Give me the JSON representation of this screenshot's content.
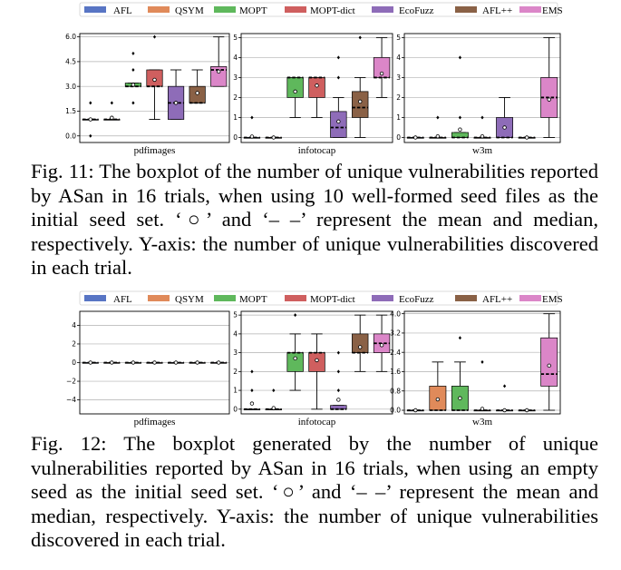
{
  "legend": [
    {
      "name": "AFL",
      "color": "#5875c4"
    },
    {
      "name": "QSYM",
      "color": "#e08a5a"
    },
    {
      "name": "MOPT",
      "color": "#5fb85c"
    },
    {
      "name": "MOPT-dict",
      "color": "#cf5f5f"
    },
    {
      "name": "EcoFuzz",
      "color": "#8e6cb8"
    },
    {
      "name": "AFL++",
      "color": "#8a6146"
    },
    {
      "name": "EMS",
      "color": "#db86c8"
    }
  ],
  "captions": {
    "fig11": "Fig. 11: The boxplot of the number of unique vulnerabilities reported by ASan in 16 trials, when using 10 well-formed seed files as the initial seed set. ‘○’ and ‘– –’ represent the mean and median, respectively. Y-axis: the number of unique vulnerabilities discovered in each trial.",
    "fig12": "Fig. 12: The boxplot generated by the number of unique vulnerabilities reported by ASan in 16 trials, when using an empty seed as the initial seed set. ‘○’ and ‘– –’ represent the mean and median, respectively. Y-axis: the number of unique vulnerabilities discovered in each trial."
  },
  "chart_data": [
    {
      "type": "box",
      "figure": "fig11",
      "panels": [
        {
          "xlabel": "pdfimages",
          "ylim": [
            -0.4,
            6.2
          ],
          "yticks": [
            0.0,
            1.5,
            3.0,
            4.5,
            6.0
          ],
          "ytick_labels": [
            "0.0",
            "1.5",
            "3.0",
            "4.5",
            "6.0"
          ],
          "boxes": [
            {
              "fuzzer": "AFL",
              "q1": 1,
              "median": 1,
              "q3": 1,
              "whisker_low": 1,
              "whisker_high": 1,
              "mean": 1.0,
              "outliers": [
                0,
                2
              ]
            },
            {
              "fuzzer": "QSYM",
              "q1": 1,
              "median": 1,
              "q3": 1,
              "whisker_low": 1,
              "whisker_high": 1,
              "mean": 1.1,
              "outliers": [
                2
              ]
            },
            {
              "fuzzer": "MOPT",
              "q1": 3,
              "median": 3,
              "q3": 3.2,
              "whisker_low": 3,
              "whisker_high": 3.2,
              "mean": 3.1,
              "outliers": [
                2,
                4,
                5
              ]
            },
            {
              "fuzzer": "MOPT-dict",
              "q1": 3,
              "median": 3,
              "q3": 4,
              "whisker_low": 1,
              "whisker_high": 4,
              "mean": 3.4,
              "outliers": [
                6
              ]
            },
            {
              "fuzzer": "EcoFuzz",
              "q1": 1,
              "median": 2,
              "q3": 3,
              "whisker_low": 1,
              "whisker_high": 4,
              "mean": 2.0,
              "outliers": []
            },
            {
              "fuzzer": "AFL++",
              "q1": 2,
              "median": 2,
              "q3": 3,
              "whisker_low": 2,
              "whisker_high": 4,
              "mean": 2.6,
              "outliers": []
            },
            {
              "fuzzer": "EMS",
              "q1": 3,
              "median": 4,
              "q3": 4.2,
              "whisker_low": 3,
              "whisker_high": 6,
              "mean": 3.9,
              "outliers": []
            }
          ]
        },
        {
          "xlabel": "infotocap",
          "ylim": [
            -0.25,
            5.2
          ],
          "yticks": [
            0,
            1,
            2,
            3,
            4,
            5
          ],
          "ytick_labels": [
            "0",
            "1",
            "2",
            "3",
            "4",
            "5"
          ],
          "boxes": [
            {
              "fuzzer": "AFL",
              "q1": 0,
              "median": 0,
              "q3": 0,
              "whisker_low": 0,
              "whisker_high": 0,
              "mean": 0.05,
              "outliers": [
                1
              ]
            },
            {
              "fuzzer": "QSYM",
              "q1": 0,
              "median": 0,
              "q3": 0,
              "whisker_low": 0,
              "whisker_high": 0,
              "mean": 0.0,
              "outliers": []
            },
            {
              "fuzzer": "MOPT",
              "q1": 2,
              "median": 3,
              "q3": 3,
              "whisker_low": 1,
              "whisker_high": 3,
              "mean": 2.3,
              "outliers": []
            },
            {
              "fuzzer": "MOPT-dict",
              "q1": 2,
              "median": 3,
              "q3": 3,
              "whisker_low": 1,
              "whisker_high": 3,
              "mean": 2.6,
              "outliers": []
            },
            {
              "fuzzer": "EcoFuzz",
              "q1": 0,
              "median": 0.5,
              "q3": 1.3,
              "whisker_low": 0,
              "whisker_high": 2,
              "mean": 0.8,
              "outliers": [
                3,
                4
              ]
            },
            {
              "fuzzer": "AFL++",
              "q1": 1,
              "median": 1.5,
              "q3": 2.3,
              "whisker_low": 0,
              "whisker_high": 3,
              "mean": 1.8,
              "outliers": [
                5
              ]
            },
            {
              "fuzzer": "EMS",
              "q1": 3,
              "median": 3,
              "q3": 4,
              "whisker_low": 2,
              "whisker_high": 5,
              "mean": 3.2,
              "outliers": []
            }
          ]
        },
        {
          "xlabel": "w3m",
          "ylim": [
            -0.25,
            5.2
          ],
          "yticks": [
            0,
            1,
            2,
            3,
            4,
            5
          ],
          "ytick_labels": [
            "0",
            "1",
            "2",
            "3",
            "4",
            "5"
          ],
          "boxes": [
            {
              "fuzzer": "AFL",
              "q1": 0,
              "median": 0,
              "q3": 0,
              "whisker_low": 0,
              "whisker_high": 0,
              "mean": 0.0,
              "outliers": []
            },
            {
              "fuzzer": "QSYM",
              "q1": 0,
              "median": 0,
              "q3": 0,
              "whisker_low": 0,
              "whisker_high": 0,
              "mean": 0.06,
              "outliers": [
                1
              ]
            },
            {
              "fuzzer": "MOPT",
              "q1": 0,
              "median": 0,
              "q3": 0.25,
              "whisker_low": 0,
              "whisker_high": 0.25,
              "mean": 0.4,
              "outliers": [
                1,
                4
              ]
            },
            {
              "fuzzer": "MOPT-dict",
              "q1": 0,
              "median": 0,
              "q3": 0,
              "whisker_low": 0,
              "whisker_high": 0,
              "mean": 0.06,
              "outliers": [
                1
              ]
            },
            {
              "fuzzer": "EcoFuzz",
              "q1": 0,
              "median": 0,
              "q3": 1,
              "whisker_low": 0,
              "whisker_high": 2,
              "mean": 0.5,
              "outliers": []
            },
            {
              "fuzzer": "AFL++",
              "q1": 0,
              "median": 0,
              "q3": 0,
              "whisker_low": 0,
              "whisker_high": 0,
              "mean": 0.0,
              "outliers": []
            },
            {
              "fuzzer": "EMS",
              "q1": 1,
              "median": 2,
              "q3": 3,
              "whisker_low": 0,
              "whisker_high": 5,
              "mean": 1.9,
              "outliers": []
            }
          ]
        }
      ]
    },
    {
      "type": "box",
      "figure": "fig12",
      "panels": [
        {
          "xlabel": "pdfimages",
          "ylim": [
            -5.5,
            5.5
          ],
          "yticks": [
            -4,
            -2,
            0,
            2,
            4
          ],
          "ytick_labels": [
            "−4",
            "−2",
            "0",
            "2",
            "4"
          ],
          "boxes": [
            {
              "fuzzer": "AFL",
              "q1": 0,
              "median": 0,
              "q3": 0,
              "whisker_low": 0,
              "whisker_high": 0,
              "mean": 0,
              "outliers": []
            },
            {
              "fuzzer": "QSYM",
              "q1": 0,
              "median": 0,
              "q3": 0,
              "whisker_low": 0,
              "whisker_high": 0,
              "mean": 0,
              "outliers": []
            },
            {
              "fuzzer": "MOPT",
              "q1": 0,
              "median": 0,
              "q3": 0,
              "whisker_low": 0,
              "whisker_high": 0,
              "mean": 0,
              "outliers": []
            },
            {
              "fuzzer": "MOPT-dict",
              "q1": 0,
              "median": 0,
              "q3": 0,
              "whisker_low": 0,
              "whisker_high": 0,
              "mean": 0,
              "outliers": []
            },
            {
              "fuzzer": "EcoFuzz",
              "q1": 0,
              "median": 0,
              "q3": 0,
              "whisker_low": 0,
              "whisker_high": 0,
              "mean": 0,
              "outliers": []
            },
            {
              "fuzzer": "AFL++",
              "q1": 0,
              "median": 0,
              "q3": 0,
              "whisker_low": 0,
              "whisker_high": 0,
              "mean": 0,
              "outliers": []
            },
            {
              "fuzzer": "EMS",
              "q1": 0,
              "median": 0,
              "q3": 0,
              "whisker_low": 0,
              "whisker_high": 0,
              "mean": 0,
              "outliers": []
            }
          ]
        },
        {
          "xlabel": "infotocap",
          "ylim": [
            -0.25,
            5.2
          ],
          "yticks": [
            0,
            1,
            2,
            3,
            4,
            5
          ],
          "ytick_labels": [
            "0",
            "1",
            "2",
            "3",
            "4",
            "5"
          ],
          "boxes": [
            {
              "fuzzer": "AFL",
              "q1": 0,
              "median": 0,
              "q3": 0,
              "whisker_low": 0,
              "whisker_high": 0,
              "mean": 0.3,
              "outliers": [
                1,
                2
              ]
            },
            {
              "fuzzer": "QSYM",
              "q1": 0,
              "median": 0,
              "q3": 0,
              "whisker_low": 0,
              "whisker_high": 0,
              "mean": 0.06,
              "outliers": [
                1
              ]
            },
            {
              "fuzzer": "MOPT",
              "q1": 2,
              "median": 3,
              "q3": 3,
              "whisker_low": 1,
              "whisker_high": 4,
              "mean": 2.7,
              "outliers": [
                5
              ]
            },
            {
              "fuzzer": "MOPT-dict",
              "q1": 2,
              "median": 3,
              "q3": 3,
              "whisker_low": 0,
              "whisker_high": 4,
              "mean": 2.6,
              "outliers": []
            },
            {
              "fuzzer": "EcoFuzz",
              "q1": 0,
              "median": 0,
              "q3": 0.2,
              "whisker_low": 0,
              "whisker_high": 0.2,
              "mean": 0.5,
              "outliers": [
                1,
                2,
                3
              ]
            },
            {
              "fuzzer": "AFL++",
              "q1": 3,
              "median": 3,
              "q3": 4,
              "whisker_low": 2,
              "whisker_high": 5,
              "mean": 3.3,
              "outliers": []
            },
            {
              "fuzzer": "EMS",
              "q1": 3,
              "median": 3.5,
              "q3": 4,
              "whisker_low": 2,
              "whisker_high": 5,
              "mean": 3.4,
              "outliers": []
            }
          ]
        },
        {
          "xlabel": "w3m",
          "ylim": [
            -0.15,
            4.1
          ],
          "yticks": [
            0.0,
            0.8,
            1.6,
            2.4,
            3.2,
            4.0
          ],
          "ytick_labels": [
            "0.0",
            "0.8",
            "1.6",
            "2.4",
            "3.2",
            "4.0"
          ],
          "boxes": [
            {
              "fuzzer": "AFL",
              "q1": 0,
              "median": 0,
              "q3": 0,
              "whisker_low": 0,
              "whisker_high": 0,
              "mean": 0.0,
              "outliers": []
            },
            {
              "fuzzer": "QSYM",
              "q1": 0,
              "median": 0,
              "q3": 1,
              "whisker_low": 0,
              "whisker_high": 2,
              "mean": 0.45,
              "outliers": []
            },
            {
              "fuzzer": "MOPT",
              "q1": 0,
              "median": 0,
              "q3": 1,
              "whisker_low": 0,
              "whisker_high": 2,
              "mean": 0.5,
              "outliers": [
                3
              ]
            },
            {
              "fuzzer": "MOPT-dict",
              "q1": 0,
              "median": 0,
              "q3": 0,
              "whisker_low": 0,
              "whisker_high": 0,
              "mean": 0.06,
              "outliers": [
                2
              ]
            },
            {
              "fuzzer": "EcoFuzz",
              "q1": 0,
              "median": 0,
              "q3": 0,
              "whisker_low": 0,
              "whisker_high": 0,
              "mean": 0.0,
              "outliers": [
                1
              ]
            },
            {
              "fuzzer": "AFL++",
              "q1": 0,
              "median": 0,
              "q3": 0,
              "whisker_low": 0,
              "whisker_high": 0,
              "mean": 0.0,
              "outliers": []
            },
            {
              "fuzzer": "EMS",
              "q1": 1,
              "median": 1.5,
              "q3": 3,
              "whisker_low": 0,
              "whisker_high": 4,
              "mean": 1.85,
              "outliers": []
            }
          ]
        }
      ]
    }
  ]
}
